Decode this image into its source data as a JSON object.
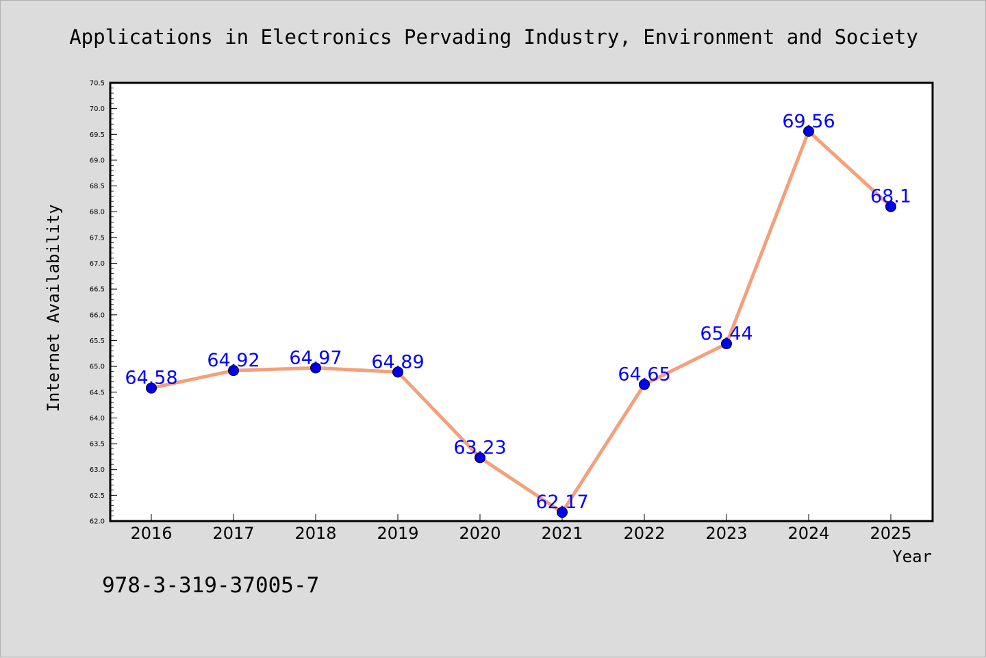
{
  "chart_data": {
    "type": "line",
    "title": "Applications in Electronics Pervading Industry, Environment and Society",
    "xlabel": "Year",
    "ylabel": "Internet Availability",
    "categories": [
      "2016",
      "2017",
      "2018",
      "2019",
      "2020",
      "2021",
      "2022",
      "2023",
      "2024",
      "2025"
    ],
    "series": [
      {
        "values": [
          64.58,
          64.92,
          64.97,
          64.89,
          63.23,
          62.17,
          64.65,
          65.44,
          69.56,
          68.1
        ],
        "labels": [
          "64.58",
          "64.92",
          "64.97",
          "64.89",
          "63.23",
          "62.17",
          "64.65",
          "65.44",
          "69.56",
          "68.1"
        ],
        "line_color": "#f4a07a",
        "marker_color": "#0000ee"
      }
    ],
    "ylim": [
      62.0,
      70.5
    ],
    "yticks": [
      "62.0",
      "62.5",
      "63.0",
      "63.5",
      "64.0",
      "64.5",
      "65.0",
      "65.5",
      "66.0",
      "66.5",
      "67.0",
      "67.5",
      "68.0",
      "68.5",
      "69.0",
      "69.5",
      "70.0",
      "70.5"
    ],
    "grid": false,
    "label_color": "#0000ff"
  },
  "footer": {
    "isbn": "978-3-319-37005-7"
  }
}
